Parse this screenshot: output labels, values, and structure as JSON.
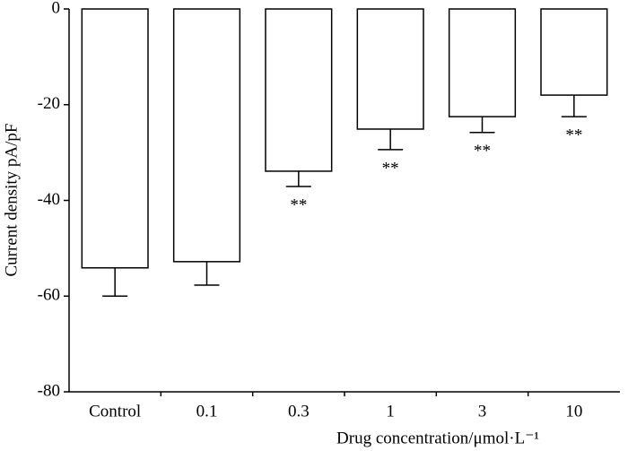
{
  "chart_data": {
    "type": "bar",
    "x_label": "Drug concentration/μmol·L⁻¹",
    "y_label": "Current density pA/pF",
    "categories": [
      "Control",
      "0.1",
      "0.3",
      "1",
      "3",
      "10"
    ],
    "values": [
      -54.1,
      -52.8,
      -33.9,
      -25.1,
      -22.5,
      -18.0
    ],
    "errors": [
      5.9,
      4.9,
      3.2,
      4.3,
      3.3,
      4.5
    ],
    "annotations": [
      null,
      null,
      "**",
      "**",
      "**",
      "**"
    ],
    "color": "#ffffff",
    "ylim": [
      -80,
      0
    ],
    "yticks": [
      0,
      -20,
      -40,
      -60,
      -80
    ]
  }
}
